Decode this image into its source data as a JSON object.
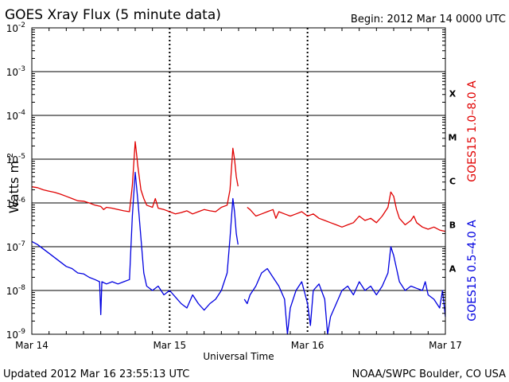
{
  "chart_data": {
    "type": "line",
    "title": "GOES Xray Flux (5 minute data)",
    "begin_label": "Begin:  2012 Mar 14 0000 UTC",
    "xlabel": "Universal Time",
    "ylabel_main": "Watts m",
    "ylabel_sup": "-2",
    "updated": "Updated 2012 Mar 16 23:55:13 UTC",
    "credit": "NOAA/SWPC Boulder, CO USA",
    "y_scale": "log",
    "ylim_exp": [
      -9,
      -2
    ],
    "xlim_hours": [
      0,
      72
    ],
    "x_ticks": [
      {
        "label": "Mar 14",
        "hour": 0
      },
      {
        "label": "Mar 15",
        "hour": 24
      },
      {
        "label": "Mar 16",
        "hour": 48
      },
      {
        "label": "Mar 17",
        "hour": 72
      }
    ],
    "y_ticks": [
      {
        "base": "10",
        "exp": "-9",
        "value_exp": -9
      },
      {
        "base": "10",
        "exp": "-8",
        "value_exp": -8
      },
      {
        "base": "10",
        "exp": "-7",
        "value_exp": -7
      },
      {
        "base": "10",
        "exp": "-6",
        "value_exp": -6
      },
      {
        "base": "10",
        "exp": "-5",
        "value_exp": -5
      },
      {
        "base": "10",
        "exp": "-4",
        "value_exp": -4
      },
      {
        "base": "10",
        "exp": "-3",
        "value_exp": -3
      },
      {
        "base": "10",
        "exp": "-2",
        "value_exp": -2
      }
    ],
    "flare_classes": [
      {
        "label": "A",
        "value_exp": -7.5
      },
      {
        "label": "B",
        "value_exp": -6.5
      },
      {
        "label": "C",
        "value_exp": -5.5
      },
      {
        "label": "M",
        "value_exp": -4.5
      },
      {
        "label": "X",
        "value_exp": -3.5
      }
    ],
    "series": [
      {
        "name": "GOES15 1.0–8.0 A",
        "color": "#e00000",
        "points": [
          [
            0,
            -5.63
          ],
          [
            1,
            -5.65
          ],
          [
            2,
            -5.7
          ],
          [
            3,
            -5.73
          ],
          [
            4,
            -5.76
          ],
          [
            5,
            -5.8
          ],
          [
            6,
            -5.85
          ],
          [
            7,
            -5.9
          ],
          [
            8,
            -5.95
          ],
          [
            9,
            -5.96
          ],
          [
            10,
            -6.0
          ],
          [
            11,
            -6.05
          ],
          [
            12,
            -6.08
          ],
          [
            12.5,
            -6.15
          ],
          [
            13,
            -6.1
          ],
          [
            14,
            -6.12
          ],
          [
            15,
            -6.15
          ],
          [
            16,
            -6.18
          ],
          [
            17,
            -6.2
          ],
          [
            17.5,
            -5.6
          ],
          [
            18,
            -4.6
          ],
          [
            18.5,
            -5.2
          ],
          [
            19,
            -5.7
          ],
          [
            19.5,
            -5.9
          ],
          [
            20,
            -6.05
          ],
          [
            21,
            -6.1
          ],
          [
            21.5,
            -5.9
          ],
          [
            22,
            -6.12
          ],
          [
            23,
            -6.15
          ],
          [
            24,
            -6.2
          ],
          [
            25,
            -6.25
          ],
          [
            26,
            -6.22
          ],
          [
            27,
            -6.18
          ],
          [
            28,
            -6.25
          ],
          [
            29,
            -6.2
          ],
          [
            30,
            -6.15
          ],
          [
            31,
            -6.18
          ],
          [
            32,
            -6.2
          ],
          [
            33,
            -6.1
          ],
          [
            34,
            -6.05
          ],
          [
            34.5,
            -5.7
          ],
          [
            35,
            -4.75
          ],
          [
            35.3,
            -5.0
          ],
          [
            35.6,
            -5.4
          ],
          [
            35.9,
            -5.62
          ],
          [
            36.2,
            null
          ],
          [
            37.5,
            -6.1
          ],
          [
            38,
            -6.15
          ],
          [
            39,
            -6.3
          ],
          [
            40,
            -6.25
          ],
          [
            41,
            -6.2
          ],
          [
            42,
            -6.15
          ],
          [
            42.5,
            -6.35
          ],
          [
            43,
            -6.2
          ],
          [
            44,
            -6.25
          ],
          [
            45,
            -6.3
          ],
          [
            46,
            -6.25
          ],
          [
            47,
            -6.2
          ],
          [
            48,
            -6.3
          ],
          [
            49,
            -6.25
          ],
          [
            50,
            -6.35
          ],
          [
            51,
            -6.4
          ],
          [
            52,
            -6.45
          ],
          [
            53,
            -6.5
          ],
          [
            54,
            -6.55
          ],
          [
            55,
            -6.5
          ],
          [
            56,
            -6.45
          ],
          [
            57,
            -6.3
          ],
          [
            58,
            -6.4
          ],
          [
            59,
            -6.35
          ],
          [
            60,
            -6.45
          ],
          [
            61,
            -6.3
          ],
          [
            62,
            -6.1
          ],
          [
            62.5,
            -5.75
          ],
          [
            63,
            -5.85
          ],
          [
            63.5,
            -6.15
          ],
          [
            64,
            -6.35
          ],
          [
            65,
            -6.5
          ],
          [
            66,
            -6.4
          ],
          [
            66.5,
            -6.3
          ],
          [
            67,
            -6.45
          ],
          [
            68,
            -6.55
          ],
          [
            69,
            -6.6
          ],
          [
            70,
            -6.55
          ],
          [
            71,
            -6.62
          ],
          [
            72,
            -6.65
          ]
        ]
      },
      {
        "name": "GOES15 0.5–4.0 A",
        "color": "#0000e0",
        "points": [
          [
            0,
            -6.88
          ],
          [
            1,
            -6.95
          ],
          [
            2,
            -7.05
          ],
          [
            3,
            -7.15
          ],
          [
            4,
            -7.25
          ],
          [
            5,
            -7.35
          ],
          [
            6,
            -7.45
          ],
          [
            7,
            -7.5
          ],
          [
            8,
            -7.6
          ],
          [
            9,
            -7.62
          ],
          [
            10,
            -7.7
          ],
          [
            11,
            -7.75
          ],
          [
            11.8,
            -7.8
          ],
          [
            12,
            -8.55
          ],
          [
            12.2,
            -7.8
          ],
          [
            13,
            -7.85
          ],
          [
            14,
            -7.8
          ],
          [
            15,
            -7.85
          ],
          [
            16,
            -7.8
          ],
          [
            17,
            -7.75
          ],
          [
            17.5,
            -6.3
          ],
          [
            18,
            -5.3
          ],
          [
            18.5,
            -6.0
          ],
          [
            19,
            -6.8
          ],
          [
            19.5,
            -7.6
          ],
          [
            20,
            -7.9
          ],
          [
            21,
            -8.0
          ],
          [
            22,
            -7.9
          ],
          [
            23,
            -8.1
          ],
          [
            24,
            -8.0
          ],
          [
            25,
            -8.15
          ],
          [
            26,
            -8.3
          ],
          [
            27,
            -8.4
          ],
          [
            28,
            -8.1
          ],
          [
            29,
            -8.3
          ],
          [
            30,
            -8.45
          ],
          [
            31,
            -8.3
          ],
          [
            32,
            -8.2
          ],
          [
            33,
            -8.0
          ],
          [
            34,
            -7.6
          ],
          [
            34.5,
            -6.8
          ],
          [
            35,
            -5.9
          ],
          [
            35.3,
            -6.2
          ],
          [
            35.6,
            -6.7
          ],
          [
            35.9,
            -6.95
          ],
          [
            36.2,
            null
          ],
          [
            37,
            -8.2
          ],
          [
            37.5,
            -8.3
          ],
          [
            38,
            -8.1
          ],
          [
            39,
            -7.9
          ],
          [
            40,
            -7.6
          ],
          [
            41,
            -7.5
          ],
          [
            42,
            -7.7
          ],
          [
            43,
            -7.9
          ],
          [
            44,
            -8.2
          ],
          [
            44.5,
            -9.0
          ],
          [
            45,
            -8.4
          ],
          [
            46,
            -8.0
          ],
          [
            47,
            -7.8
          ],
          [
            48,
            -8.3
          ],
          [
            48.5,
            -8.8
          ],
          [
            49,
            -8.0
          ],
          [
            50,
            -7.85
          ],
          [
            51,
            -8.2
          ],
          [
            51.5,
            -9.0
          ],
          [
            52,
            -8.6
          ],
          [
            53,
            -8.3
          ],
          [
            54,
            -8.0
          ],
          [
            55,
            -7.9
          ],
          [
            56,
            -8.1
          ],
          [
            57,
            -7.8
          ],
          [
            58,
            -8.0
          ],
          [
            59,
            -7.9
          ],
          [
            60,
            -8.1
          ],
          [
            61,
            -7.9
          ],
          [
            62,
            -7.6
          ],
          [
            62.5,
            -7.0
          ],
          [
            63,
            -7.2
          ],
          [
            64,
            -7.8
          ],
          [
            65,
            -8.0
          ],
          [
            66,
            -7.9
          ],
          [
            67,
            -7.95
          ],
          [
            68,
            -8.0
          ],
          [
            68.5,
            -7.8
          ],
          [
            69,
            -8.1
          ],
          [
            70,
            -8.2
          ],
          [
            71,
            -8.4
          ],
          [
            71.5,
            -8.0
          ],
          [
            72,
            -8.6
          ]
        ]
      }
    ]
  }
}
